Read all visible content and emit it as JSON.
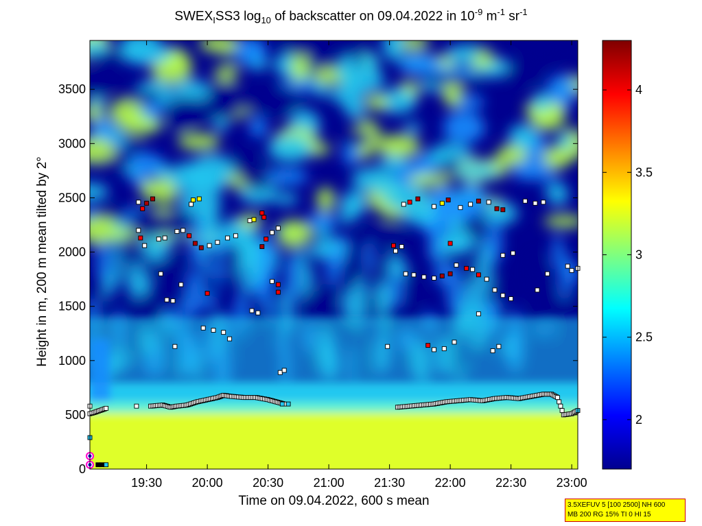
{
  "title": {
    "prefix": "SWEX",
    "sub1": "I",
    "mid1": "SS3 log",
    "sub2": "10",
    "mid2": " of backscatter on 09.04.2022 in 10",
    "sup1": "-9",
    "mid3": " m",
    "sup2": "-1",
    "mid4": " sr",
    "sup3": "-1"
  },
  "chart_data": {
    "type": "heatmap",
    "xlabel": "Time on 09.04.2022, 600 s mean",
    "ylabel": "Height in m, 200 m mean tilted by 2°",
    "x_range": [
      "19:02",
      "23:03"
    ],
    "x_ticks": [
      "19:30",
      "20:00",
      "20:30",
      "21:00",
      "21:30",
      "22:00",
      "22:30",
      "23:00"
    ],
    "y_range": [
      0,
      3950
    ],
    "y_ticks": [
      0,
      500,
      1000,
      1500,
      2000,
      2500,
      3000,
      3500
    ],
    "colorbar": {
      "range": [
        1.7,
        4.3
      ],
      "ticks": [
        "2",
        "2.5",
        "3",
        "3.5",
        "4"
      ],
      "colormap": "jet"
    },
    "colors": {
      "surface": "#dfff2a",
      "boundary": "#5ff0d5",
      "mid": "#23c8f0",
      "upper": "#1a8fff",
      "clear": "#00008f",
      "cloud": "#b9ff48"
    },
    "boundary_layer_markers": [
      [
        "19:02",
        510
      ],
      [
        "19:04",
        520
      ],
      [
        "19:07",
        540
      ],
      [
        "19:10",
        560
      ],
      [
        "19:25",
        580
      ],
      [
        "19:32",
        580
      ],
      [
        "19:38",
        590
      ],
      [
        "19:42",
        570
      ],
      [
        "19:45",
        580
      ],
      [
        "19:50",
        590
      ],
      [
        "19:55",
        620
      ],
      [
        "20:00",
        640
      ],
      [
        "20:05",
        660
      ],
      [
        "20:08",
        680
      ],
      [
        "20:12",
        670
      ],
      [
        "20:18",
        660
      ],
      [
        "20:24",
        660
      ],
      [
        "20:30",
        640
      ],
      [
        "20:34",
        620
      ],
      [
        "20:38",
        600
      ],
      [
        "21:34",
        570
      ],
      [
        "21:40",
        580
      ],
      [
        "21:46",
        590
      ],
      [
        "21:52",
        600
      ],
      [
        "21:58",
        620
      ],
      [
        "22:04",
        630
      ],
      [
        "22:10",
        640
      ],
      [
        "22:16",
        630
      ],
      [
        "22:22",
        650
      ],
      [
        "22:28",
        660
      ],
      [
        "22:34",
        650
      ],
      [
        "22:40",
        670
      ],
      [
        "22:46",
        690
      ],
      [
        "22:50",
        690
      ],
      [
        "22:53",
        660
      ],
      [
        "22:56",
        500
      ],
      [
        "23:00",
        510
      ],
      [
        "23:03",
        540
      ]
    ],
    "cloud_markers": [
      [
        "19:26",
        2460,
        "#ffffff"
      ],
      [
        "19:28",
        2400,
        "#ff0000"
      ],
      [
        "19:30",
        2450,
        "#aa0000"
      ],
      [
        "19:33",
        2490,
        "#aa0000"
      ],
      [
        "19:26",
        2200,
        "#ffffff"
      ],
      [
        "19:27",
        2130,
        "#ff0000"
      ],
      [
        "19:29",
        2060,
        "#ffffff"
      ],
      [
        "19:36",
        2120,
        "#ffffff"
      ],
      [
        "19:39",
        2130,
        "#ffffff"
      ],
      [
        "19:45",
        2190,
        "#ffffff"
      ],
      [
        "19:48",
        2200,
        "#ffffff"
      ],
      [
        "19:51",
        2150,
        "#ff0000"
      ],
      [
        "19:54",
        2080,
        "#aa0000"
      ],
      [
        "19:57",
        2040,
        "#aa0000"
      ],
      [
        "20:01",
        2060,
        "#ffffff"
      ],
      [
        "20:05",
        2090,
        "#ffffff"
      ],
      [
        "20:10",
        2130,
        "#ffffff"
      ],
      [
        "20:14",
        2150,
        "#ffffff"
      ],
      [
        "19:52",
        2440,
        "#ffffff"
      ],
      [
        "19:53",
        2480,
        "#ffff00"
      ],
      [
        "19:56",
        2490,
        "#ffff00"
      ],
      [
        "20:21",
        2290,
        "#ffffff"
      ],
      [
        "20:23",
        2300,
        "#ffff00"
      ],
      [
        "20:27",
        2360,
        "#ff0000"
      ],
      [
        "20:28",
        2320,
        "#ff0000"
      ],
      [
        "20:27",
        2050,
        "#aa0000"
      ],
      [
        "20:29",
        2120,
        "#ff0000"
      ],
      [
        "20:32",
        2180,
        "#ffffff"
      ],
      [
        "20:35",
        2220,
        "#ffffff"
      ],
      [
        "19:37",
        1800,
        "#ffffff"
      ],
      [
        "19:47",
        1700,
        "#ffffff"
      ],
      [
        "19:40",
        1560,
        "#ffffff"
      ],
      [
        "19:43",
        1550,
        "#ffffff"
      ],
      [
        "20:00",
        1620,
        "#ff0000"
      ],
      [
        "20:32",
        1730,
        "#ffffff"
      ],
      [
        "20:35",
        1700,
        "#ff0000"
      ],
      [
        "20:35",
        1630,
        "#ff0000"
      ],
      [
        "20:22",
        1460,
        "#ffffff"
      ],
      [
        "20:25",
        1440,
        "#ffffff"
      ],
      [
        "19:58",
        1300,
        "#ffffff"
      ],
      [
        "20:03",
        1280,
        "#ffffff"
      ],
      [
        "20:08",
        1260,
        "#ffffff"
      ],
      [
        "20:11",
        1200,
        "#ffffff"
      ],
      [
        "19:44",
        1130,
        "#ffffff"
      ],
      [
        "20:36",
        890,
        "#ffffff"
      ],
      [
        "20:38",
        910,
        "#ffffff"
      ],
      [
        "21:37",
        2440,
        "#ffffff"
      ],
      [
        "21:40",
        2460,
        "#ff0000"
      ],
      [
        "21:44",
        2490,
        "#aa0000"
      ],
      [
        "21:52",
        2420,
        "#ffffff"
      ],
      [
        "21:56",
        2450,
        "#ffff00"
      ],
      [
        "21:59",
        2480,
        "#aa0000"
      ],
      [
        "22:05",
        2410,
        "#ffffff"
      ],
      [
        "22:10",
        2440,
        "#ffffff"
      ],
      [
        "22:14",
        2470,
        "#aa0000"
      ],
      [
        "22:19",
        2460,
        "#ffffff"
      ],
      [
        "22:23",
        2400,
        "#aa0000"
      ],
      [
        "22:26",
        2390,
        "#aa0000"
      ],
      [
        "22:37",
        2470,
        "#ffffff"
      ],
      [
        "22:42",
        2450,
        "#ffffff"
      ],
      [
        "22:46",
        2460,
        "#ffffff"
      ],
      [
        "21:32",
        2060,
        "#ff0000"
      ],
      [
        "21:33",
        2010,
        "#ffffff"
      ],
      [
        "21:36",
        2050,
        "#ffffff"
      ],
      [
        "22:00",
        2080,
        "#ff0000"
      ],
      [
        "21:38",
        1800,
        "#ffffff"
      ],
      [
        "21:42",
        1790,
        "#ffffff"
      ],
      [
        "21:47",
        1770,
        "#ffffff"
      ],
      [
        "21:52",
        1760,
        "#ffffff"
      ],
      [
        "21:56",
        1780,
        "#aa0000"
      ],
      [
        "22:00",
        1800,
        "#aa0000"
      ],
      [
        "22:03",
        1880,
        "#ffffff"
      ],
      [
        "22:08",
        1850,
        "#ff0000"
      ],
      [
        "22:11",
        1840,
        "#ffffff"
      ],
      [
        "22:14",
        1790,
        "#ff0000"
      ],
      [
        "22:18",
        1750,
        "#ffffff"
      ],
      [
        "22:26",
        1970,
        "#ffffff"
      ],
      [
        "22:31",
        1990,
        "#ffffff"
      ],
      [
        "22:22",
        1650,
        "#ffffff"
      ],
      [
        "22:26",
        1600,
        "#ffffff"
      ],
      [
        "22:30",
        1570,
        "#ffffff"
      ],
      [
        "22:14",
        1430,
        "#ffffff"
      ],
      [
        "21:49",
        1140,
        "#ff0000"
      ],
      [
        "21:52",
        1100,
        "#ffffff"
      ],
      [
        "21:57",
        1110,
        "#ffffff"
      ],
      [
        "22:02",
        1170,
        "#ffffff"
      ],
      [
        "22:21",
        1090,
        "#ffffff"
      ],
      [
        "22:24",
        1130,
        "#ffffff"
      ],
      [
        "21:29",
        1130,
        "#ffffff"
      ],
      [
        "22:43",
        1650,
        "#ffffff"
      ],
      [
        "22:48",
        1800,
        "#ffffff"
      ],
      [
        "22:58",
        1870,
        "#ffffff"
      ],
      [
        "23:00",
        1830,
        "#ffffff"
      ],
      [
        "23:03",
        1850,
        "#ffffff"
      ]
    ],
    "near_ground_markers": [
      [
        "19:02",
        580,
        "#ffffff"
      ],
      [
        "19:02",
        290,
        "#23c8f0"
      ],
      [
        "19:02",
        120,
        "#ff00cc"
      ],
      [
        "19:02",
        40,
        "#ff00cc"
      ],
      [
        "19:06",
        40,
        "#000000"
      ],
      [
        "19:08",
        40,
        "#000000"
      ],
      [
        "19:10",
        40,
        "#23c8f0"
      ],
      [
        "20:37",
        600,
        "#23c8f0"
      ],
      [
        "20:40",
        600,
        "#23c8f0"
      ]
    ]
  },
  "info_box": {
    "line1": "3.5XEFUV 5 [100 2500] NH 600",
    "line2": "MB 200 RG 15% TI 0 HI 15"
  }
}
